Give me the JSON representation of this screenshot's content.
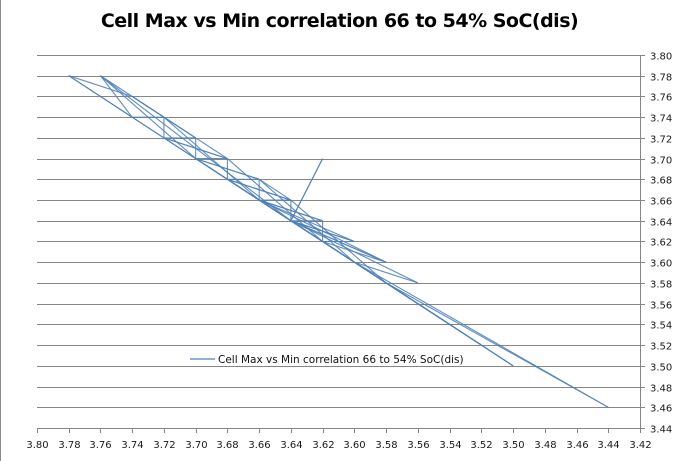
{
  "chart_data": {
    "type": "line",
    "title": "Cell Max vs Min correlation 66 to 54% SoC(dis)",
    "xlabel": "",
    "ylabel": "",
    "x_axis": {
      "range": [
        3.8,
        3.42
      ],
      "reversed": true,
      "ticks": [
        "3.80",
        "3.78",
        "3.76",
        "3.74",
        "3.72",
        "3.70",
        "3.68",
        "3.66",
        "3.64",
        "3.62",
        "3.60",
        "3.58",
        "3.56",
        "3.54",
        "3.52",
        "3.50",
        "3.48",
        "3.46",
        "3.44",
        "3.42"
      ]
    },
    "y_axis": {
      "range": [
        3.44,
        3.8
      ],
      "position": "right",
      "ticks": [
        "3.44",
        "3.46",
        "3.48",
        "3.50",
        "3.52",
        "3.54",
        "3.56",
        "3.58",
        "3.60",
        "3.62",
        "3.64",
        "3.66",
        "3.68",
        "3.70",
        "3.72",
        "3.74",
        "3.76",
        "3.78",
        "3.80"
      ]
    },
    "grid": "horizontal",
    "legend": {
      "position": "inside-bottom-center",
      "entries": [
        "Cell Max vs Min correlation 66 to 54% SoC(dis)"
      ]
    },
    "color": "#4f81bd",
    "series": [
      {
        "name": "Cell Max vs Min correlation 66 to 54% SoC(dis)",
        "points": [
          [
            3.78,
            3.78
          ],
          [
            3.74,
            3.76
          ],
          [
            3.72,
            3.74
          ],
          [
            3.74,
            3.74
          ],
          [
            3.76,
            3.78
          ],
          [
            3.72,
            3.74
          ],
          [
            3.72,
            3.72
          ],
          [
            3.7,
            3.72
          ],
          [
            3.74,
            3.76
          ],
          [
            3.7,
            3.72
          ],
          [
            3.7,
            3.7
          ],
          [
            3.68,
            3.7
          ],
          [
            3.72,
            3.72
          ],
          [
            3.68,
            3.7
          ],
          [
            3.68,
            3.68
          ],
          [
            3.66,
            3.68
          ],
          [
            3.7,
            3.7
          ],
          [
            3.66,
            3.68
          ],
          [
            3.66,
            3.66
          ],
          [
            3.64,
            3.66
          ],
          [
            3.68,
            3.68
          ],
          [
            3.64,
            3.66
          ],
          [
            3.64,
            3.64
          ],
          [
            3.62,
            3.7
          ],
          [
            3.64,
            3.64
          ],
          [
            3.62,
            3.64
          ],
          [
            3.66,
            3.66
          ],
          [
            3.62,
            3.64
          ],
          [
            3.62,
            3.62
          ],
          [
            3.6,
            3.62
          ],
          [
            3.64,
            3.64
          ],
          [
            3.58,
            3.6
          ],
          [
            3.62,
            3.62
          ],
          [
            3.6,
            3.6
          ],
          [
            3.56,
            3.58
          ],
          [
            3.64,
            3.64
          ],
          [
            3.6,
            3.62
          ],
          [
            3.66,
            3.66
          ],
          [
            3.62,
            3.62
          ],
          [
            3.52,
            3.52
          ],
          [
            3.62,
            3.62
          ],
          [
            3.68,
            3.68
          ],
          [
            3.6,
            3.6
          ],
          [
            3.44,
            3.46
          ],
          [
            3.58,
            3.58
          ],
          [
            3.7,
            3.7
          ],
          [
            3.62,
            3.62
          ],
          [
            3.5,
            3.5
          ],
          [
            3.6,
            3.6
          ],
          [
            3.72,
            3.72
          ],
          [
            3.78,
            3.78
          ],
          [
            3.74,
            3.74
          ],
          [
            3.66,
            3.66
          ],
          [
            3.58,
            3.6
          ],
          [
            3.64,
            3.64
          ],
          [
            3.76,
            3.78
          ],
          [
            3.7,
            3.7
          ],
          [
            3.6,
            3.6
          ],
          [
            3.5,
            3.5
          ],
          [
            3.56,
            3.56
          ],
          [
            3.66,
            3.66
          ],
          [
            3.72,
            3.74
          ],
          [
            3.68,
            3.7
          ],
          [
            3.62,
            3.62
          ],
          [
            3.54,
            3.54
          ],
          [
            3.6,
            3.6
          ],
          [
            3.66,
            3.68
          ],
          [
            3.64,
            3.66
          ],
          [
            3.58,
            3.58
          ],
          [
            3.52,
            3.52
          ]
        ]
      }
    ]
  }
}
